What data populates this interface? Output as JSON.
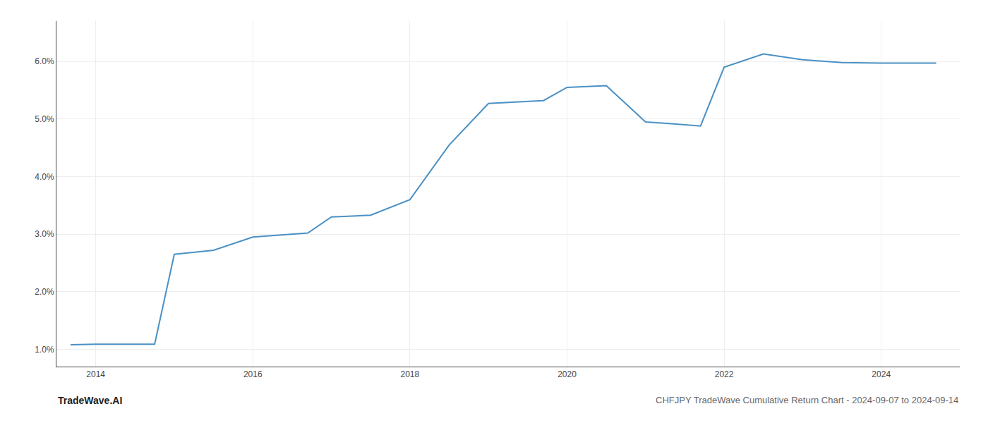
{
  "chart_data": {
    "type": "line",
    "title": "CHFJPY TradeWave Cumulative Return Chart - 2024-09-07 to 2024-09-14",
    "annotations": [
      "TradeWave.AI"
    ],
    "x": [
      2013.68,
      2014.0,
      2014.75,
      2015.0,
      2015.5,
      2016.0,
      2016.7,
      2017.0,
      2017.5,
      2018.0,
      2018.5,
      2019.0,
      2019.7,
      2020.0,
      2020.5,
      2021.0,
      2021.3,
      2021.7,
      2022.0,
      2022.5,
      2023.0,
      2023.5,
      2024.0,
      2024.7
    ],
    "values": [
      1.08,
      1.09,
      1.09,
      2.65,
      2.72,
      2.95,
      3.02,
      3.3,
      3.33,
      3.6,
      4.55,
      5.27,
      5.32,
      5.55,
      5.58,
      4.95,
      4.92,
      4.88,
      5.9,
      6.13,
      6.03,
      5.98,
      5.97,
      5.97
    ],
    "color": "#4a90c4",
    "xlim": [
      2013.5,
      2025.0
    ],
    "ylim": [
      0.7,
      6.7
    ],
    "xticks": [
      2014,
      2016,
      2018,
      2020,
      2022,
      2024
    ],
    "yticks": [
      {
        "value": 1.0,
        "label": "1.0%"
      },
      {
        "value": 2.0,
        "label": "2.0%"
      },
      {
        "value": 3.0,
        "label": "3.0%"
      },
      {
        "value": 4.0,
        "label": "4.0%"
      },
      {
        "value": 5.0,
        "label": "5.0%"
      },
      {
        "value": 6.0,
        "label": "6.0%"
      }
    ],
    "grid": true
  }
}
